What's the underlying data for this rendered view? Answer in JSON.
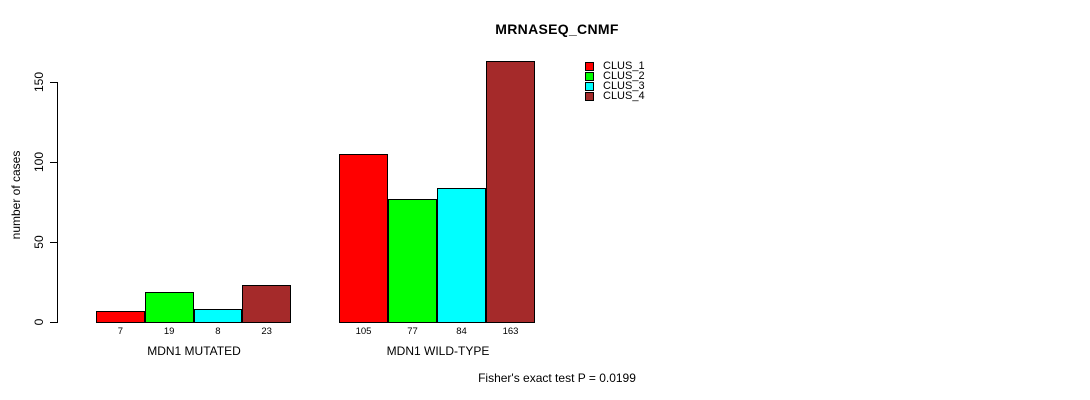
{
  "chart_data": {
    "type": "bar",
    "title": "MRNASEQ_CNMF",
    "ylabel": "number of cases",
    "xlabel": "",
    "ylim": [
      0,
      150
    ],
    "yticks": [
      0,
      50,
      100,
      150
    ],
    "grid": false,
    "legend_position": "top-right",
    "bar_value_labels_shown": true,
    "categories": [
      "MDN1 MUTATED",
      "MDN1 WILD-TYPE"
    ],
    "series": [
      {
        "name": "CLUS_1",
        "color": "#FF0000",
        "values": [
          7,
          105
        ]
      },
      {
        "name": "CLUS_2",
        "color": "#00FF00",
        "values": [
          19,
          77
        ]
      },
      {
        "name": "CLUS_3",
        "color": "#00FFFF",
        "values": [
          8,
          84
        ]
      },
      {
        "name": "CLUS_4",
        "color": "#A52A2A",
        "values": [
          23,
          163
        ]
      }
    ],
    "annotation": "Fisher's exact test P = 0.0199"
  }
}
